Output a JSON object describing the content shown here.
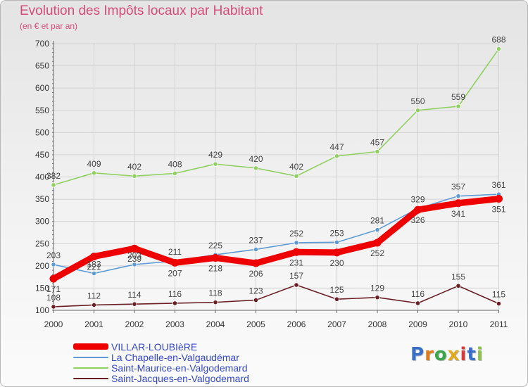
{
  "chart_data": {
    "type": "line",
    "title": "Evolution des Impôts locaux par Habitant",
    "subtitle": "(en € et par an)",
    "xlabel": "",
    "ylabel": "",
    "ylim": [
      100,
      700
    ],
    "yticks": [
      100,
      150,
      200,
      250,
      300,
      350,
      400,
      450,
      500,
      550,
      600,
      650,
      700
    ],
    "categories": [
      "2000",
      "2001",
      "2002",
      "2003",
      "2004",
      "2005",
      "2006",
      "2007",
      "2008",
      "2009",
      "2010",
      "2011"
    ],
    "grid": true,
    "legend_position": "bottom-left",
    "series": [
      {
        "name": "Saint-Jacques-en-Valgodemard",
        "color": "#6b1f24",
        "values": [
          108,
          112,
          114,
          116,
          118,
          123,
          157,
          125,
          129,
          116,
          155,
          115
        ]
      },
      {
        "name": "Saint-Maurice-en-Valgodemard",
        "color": "#8fd060",
        "values": [
          382,
          409,
          402,
          408,
          429,
          420,
          402,
          447,
          457,
          550,
          559,
          688
        ]
      },
      {
        "name": "La Chapelle-en-Valgaudémar",
        "color": "#5e9bd6",
        "values": [
          203,
          183,
          203,
          211,
          225,
          237,
          252,
          253,
          281,
          329,
          357,
          361
        ]
      },
      {
        "name": "VILLAR-LOUBIèRE",
        "color": "#ee0000",
        "values": [
          171,
          221,
          239,
          207,
          218,
          206,
          231,
          230,
          252,
          326,
          341,
          351
        ]
      }
    ],
    "legend": [
      "VILLAR-LOUBIèRE",
      "La Chapelle-en-Valgaudémar",
      "Saint-Maurice-en-Valgodemard",
      "Saint-Jacques-en-Valgodemard"
    ]
  },
  "brand": {
    "letters": [
      "P",
      "r",
      "o",
      "x",
      "i",
      "t",
      "i"
    ],
    "colors": [
      "#3a6fc9",
      "#e07b1a",
      "#3aa84a",
      "#e0a81a",
      "#d93a3a",
      "#3a6fc9",
      "#8bc34a"
    ]
  }
}
